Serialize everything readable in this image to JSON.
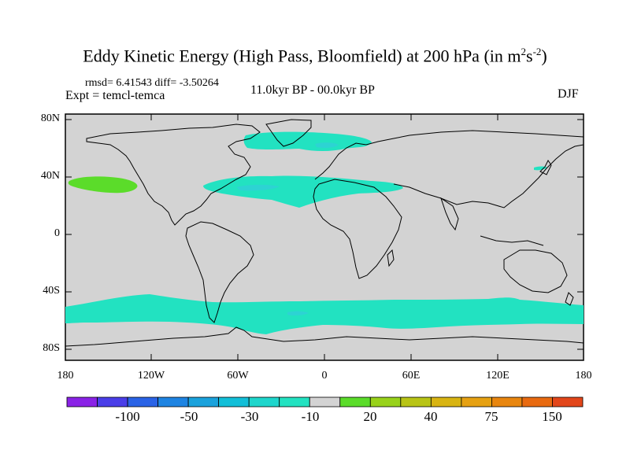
{
  "title": {
    "main": "Eddy Kinetic Energy (High Pass, Bloomfield) at 200 hPa (in m",
    "unit_sup1": "2",
    "unit_mid": "s",
    "unit_sup2": "-2",
    "unit_end": ")"
  },
  "stats": "rmsd= 6.41543 diff= -3.50264",
  "experiment": "Expt = temcl-temca",
  "period": "11.0kyr BP - 00.0kyr BP",
  "season": "DJF",
  "map": {
    "background_color": "#d3d3d3",
    "lat_labels": [
      "80N",
      "40N",
      "0",
      "40S",
      "80S"
    ],
    "lon_labels": [
      "180",
      "120W",
      "60W",
      "0",
      "60E",
      "120E",
      "180"
    ],
    "regions": [
      {
        "name": "north-atlantic-anomaly",
        "color": "#22e2c1"
      },
      {
        "name": "north-atlantic-inner",
        "color": "#2dd3d3"
      },
      {
        "name": "central-atlantic-anomaly",
        "color": "#22e2c1"
      },
      {
        "name": "north-pacific-positive",
        "color": "#5bdc2a"
      },
      {
        "name": "southern-ocean-anomaly",
        "color": "#22e2c1"
      },
      {
        "name": "east-asia-anomaly",
        "color": "#22e2c1"
      }
    ]
  },
  "colorbar": {
    "colors": [
      "#8a22e6",
      "#4a3ee8",
      "#2a63e6",
      "#1e84e2",
      "#1aa2dc",
      "#12bfd8",
      "#1ed6cc",
      "#22e2c1",
      "#d3d3d3",
      "#5bdc2a",
      "#98d21a",
      "#b8c416",
      "#d8b412",
      "#e6a112",
      "#e8860f",
      "#e86a10",
      "#e2461a"
    ],
    "labels": [
      "-100",
      "-50",
      "-30",
      "-10",
      "20",
      "40",
      "75",
      "150"
    ]
  }
}
